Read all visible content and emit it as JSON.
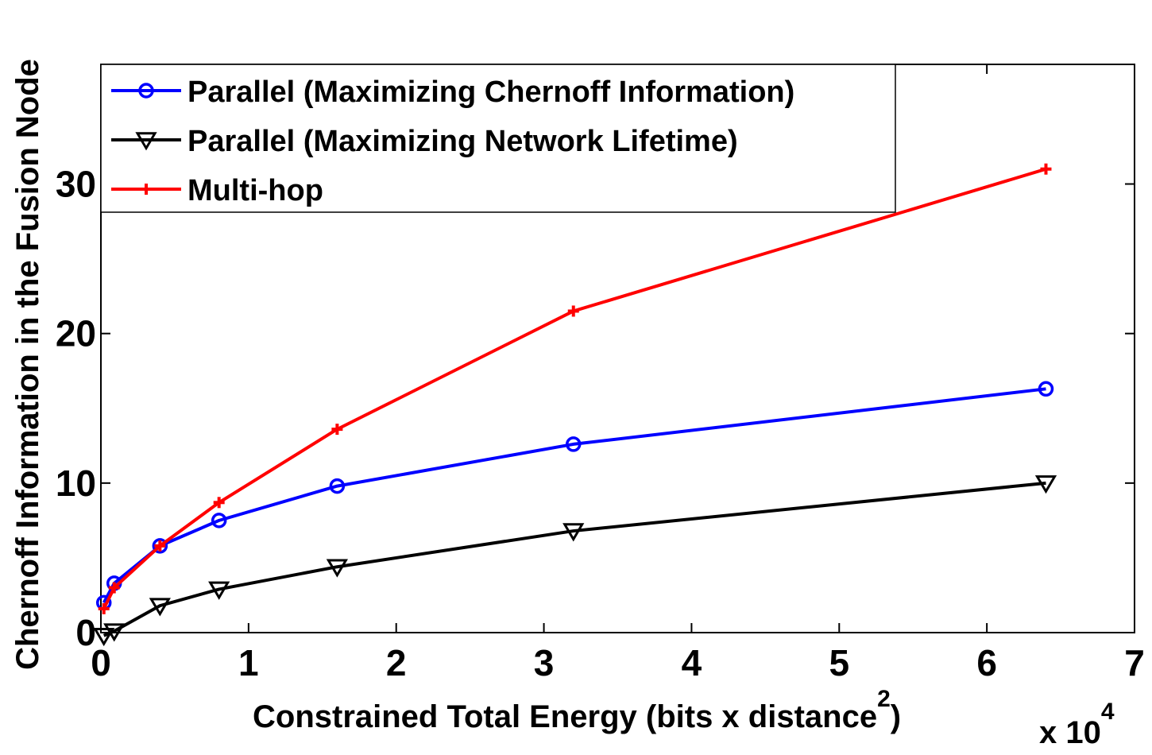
{
  "chart_data": {
    "type": "line",
    "title": "",
    "xlabel": "Constrained Total Energy (bits x distance",
    "xlabel_superscript": "2",
    "xlabel_close": ")",
    "ylabel": "Chernoff Information in the Fusion Node",
    "x_multiplier_base": "x 10",
    "x_multiplier_exp": "4",
    "xlim": [
      0,
      7
    ],
    "ylim": [
      0,
      38
    ],
    "x_ticks": [
      0,
      1,
      2,
      3,
      4,
      5,
      6,
      7
    ],
    "x_tick_labels": [
      "0",
      "1",
      "2",
      "3",
      "4",
      "5",
      "6",
      "7"
    ],
    "y_ticks": [
      0,
      10,
      20,
      30
    ],
    "y_tick_labels": [
      "0",
      "10",
      "20",
      "30"
    ],
    "grid": false,
    "legend_position": "top-left",
    "series": [
      {
        "name": "Parallel (Maximizing Chernoff Information)",
        "color": "#0000ff",
        "marker": "circle",
        "x": [
          0.02,
          0.09,
          0.4,
          0.8,
          1.6,
          3.2,
          6.4
        ],
        "y": [
          2.0,
          3.3,
          5.8,
          7.5,
          9.8,
          12.6,
          16.3
        ]
      },
      {
        "name": "Parallel (Maximizing Network Lifetime)",
        "color": "#000000",
        "marker": "triangle-down",
        "x": [
          0.02,
          0.09,
          0.4,
          0.8,
          1.6,
          3.2,
          6.4
        ],
        "y": [
          -0.2,
          0.1,
          1.8,
          2.9,
          4.4,
          6.8,
          10.0
        ]
      },
      {
        "name": "Multi-hop",
        "color": "#ff0000",
        "marker": "plus",
        "x": [
          0.02,
          0.09,
          0.4,
          0.8,
          1.6,
          3.2,
          6.4
        ],
        "y": [
          1.6,
          3.0,
          5.8,
          8.7,
          13.6,
          21.5,
          31.0
        ]
      }
    ]
  }
}
